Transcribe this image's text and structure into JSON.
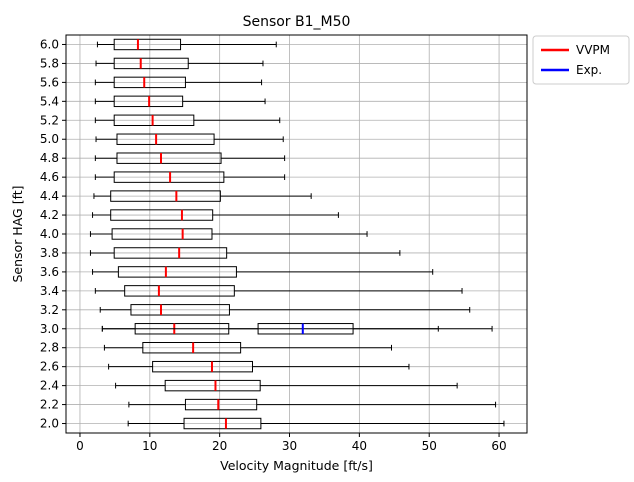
{
  "chart_data": {
    "type": "boxplot",
    "orientation": "horizontal",
    "title": "Sensor B1_M50",
    "xlabel": "Velocity Magnitude [ft/s]",
    "ylabel": "Sensor HAG [ft]",
    "xlim": [
      -2,
      64
    ],
    "xticks": [
      0,
      10,
      20,
      30,
      40,
      50,
      60
    ],
    "grid": true,
    "legend_position": "outside-top-right",
    "series": [
      {
        "name": "VVPM",
        "color": "#ff0000"
      },
      {
        "name": "Exp.",
        "color": "#0000ff"
      }
    ],
    "boxes": [
      {
        "label": "6.0",
        "series": "VVPM",
        "whisker_low": 2.5,
        "q1": 4.9,
        "median": 8.3,
        "q3": 14.4,
        "whisker_high": 28.1
      },
      {
        "label": "5.8",
        "series": "VVPM",
        "whisker_low": 2.3,
        "q1": 4.9,
        "median": 8.7,
        "q3": 15.5,
        "whisker_high": 26.2
      },
      {
        "label": "5.6",
        "series": "VVPM",
        "whisker_low": 2.2,
        "q1": 4.9,
        "median": 9.2,
        "q3": 15.1,
        "whisker_high": 26.0
      },
      {
        "label": "5.4",
        "series": "VVPM",
        "whisker_low": 2.2,
        "q1": 4.9,
        "median": 9.9,
        "q3": 14.7,
        "whisker_high": 26.5
      },
      {
        "label": "5.2",
        "series": "VVPM",
        "whisker_low": 2.2,
        "q1": 4.9,
        "median": 10.4,
        "q3": 16.3,
        "whisker_high": 28.6
      },
      {
        "label": "5.0",
        "series": "VVPM",
        "whisker_low": 2.3,
        "q1": 5.3,
        "median": 10.9,
        "q3": 19.2,
        "whisker_high": 29.1
      },
      {
        "label": "4.8",
        "series": "VVPM",
        "whisker_low": 2.2,
        "q1": 5.3,
        "median": 11.6,
        "q3": 20.2,
        "whisker_high": 29.3
      },
      {
        "label": "4.6",
        "series": "VVPM",
        "whisker_low": 2.2,
        "q1": 4.9,
        "median": 12.9,
        "q3": 20.6,
        "whisker_high": 29.3
      },
      {
        "label": "4.4",
        "series": "VVPM",
        "whisker_low": 2.0,
        "q1": 4.4,
        "median": 13.8,
        "q3": 20.1,
        "whisker_high": 33.1
      },
      {
        "label": "4.2",
        "series": "VVPM",
        "whisker_low": 1.8,
        "q1": 4.4,
        "median": 14.6,
        "q3": 19.0,
        "whisker_high": 37.0
      },
      {
        "label": "4.0",
        "series": "VVPM",
        "whisker_low": 1.5,
        "q1": 4.6,
        "median": 14.7,
        "q3": 18.9,
        "whisker_high": 41.1
      },
      {
        "label": "3.8",
        "series": "VVPM",
        "whisker_low": 1.5,
        "q1": 4.9,
        "median": 14.2,
        "q3": 21.0,
        "whisker_high": 45.8
      },
      {
        "label": "3.6",
        "series": "VVPM",
        "whisker_low": 1.8,
        "q1": 5.5,
        "median": 12.3,
        "q3": 22.4,
        "whisker_high": 50.5
      },
      {
        "label": "3.4",
        "series": "VVPM",
        "whisker_low": 2.2,
        "q1": 6.4,
        "median": 11.3,
        "q3": 22.1,
        "whisker_high": 54.7
      },
      {
        "label": "3.2",
        "series": "VVPM",
        "whisker_low": 2.9,
        "q1": 7.3,
        "median": 11.6,
        "q3": 21.4,
        "whisker_high": 55.8
      },
      {
        "label": "3.0",
        "series": "VVPM",
        "whisker_low": 3.2,
        "q1": 7.9,
        "median": 13.5,
        "q3": 21.3,
        "whisker_high": 51.3
      },
      {
        "label": "3.0",
        "series": "Exp.",
        "whisker_low": 3.2,
        "q1": 25.5,
        "median": 31.9,
        "q3": 39.1,
        "whisker_high": 59.0
      },
      {
        "label": "2.8",
        "series": "VVPM",
        "whisker_low": 3.5,
        "q1": 9.0,
        "median": 16.2,
        "q3": 23.0,
        "whisker_high": 44.6
      },
      {
        "label": "2.6",
        "series": "VVPM",
        "whisker_low": 4.1,
        "q1": 10.4,
        "median": 18.9,
        "q3": 24.7,
        "whisker_high": 47.1
      },
      {
        "label": "2.4",
        "series": "VVPM",
        "whisker_low": 5.1,
        "q1": 12.2,
        "median": 19.4,
        "q3": 25.8,
        "whisker_high": 54.0
      },
      {
        "label": "2.2",
        "series": "VVPM",
        "whisker_low": 7.0,
        "q1": 15.1,
        "median": 19.8,
        "q3": 25.3,
        "whisker_high": 59.5
      },
      {
        "label": "2.0",
        "series": "VVPM",
        "whisker_low": 6.9,
        "q1": 14.9,
        "median": 20.9,
        "q3": 25.9,
        "whisker_high": 60.7
      }
    ]
  }
}
